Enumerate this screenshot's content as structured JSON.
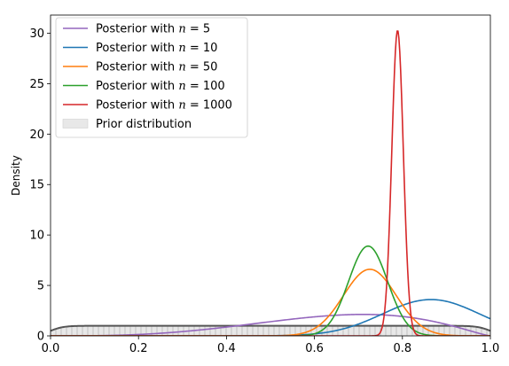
{
  "chart_data": {
    "type": "line",
    "title": "",
    "xlabel": "",
    "ylabel": "Density",
    "xlim": [
      0,
      1
    ],
    "ylim": [
      0,
      31.8
    ],
    "x_ticks": [
      0.0,
      0.2,
      0.4,
      0.6,
      0.8,
      1.0
    ],
    "x_tick_labels": [
      "0.0",
      "0.2",
      "0.4",
      "0.6",
      "0.8",
      "1.0"
    ],
    "y_ticks": [
      0,
      5,
      10,
      15,
      20,
      25,
      30
    ],
    "y_tick_labels": [
      "0",
      "5",
      "10",
      "15",
      "20",
      "25",
      "30"
    ],
    "grid": false,
    "legend_position": "top-left",
    "prior": {
      "name": "Prior distribution",
      "legend_prefix": "Prior distribution",
      "color": "#555555",
      "fill_color": "#e8e8e8",
      "hatch": "vertical",
      "shape": {
        "type": "smooth-box",
        "low": 0.0,
        "high": 1.0,
        "height": 1.0,
        "edge_width": 0.015
      },
      "values": [
        {
          "x": 0.0,
          "y": 0.5
        },
        {
          "x": 0.03,
          "y": 0.85
        },
        {
          "x": 0.05,
          "y": 0.98
        },
        {
          "x": 0.1,
          "y": 1.0
        },
        {
          "x": 0.5,
          "y": 1.0
        },
        {
          "x": 0.9,
          "y": 1.0
        },
        {
          "x": 0.95,
          "y": 0.98
        },
        {
          "x": 0.97,
          "y": 0.85
        },
        {
          "x": 1.0,
          "y": 0.5
        }
      ]
    },
    "series": [
      {
        "name": "Posterior with n = 5",
        "legend_prefix": "Posterior with ",
        "legend_math": "n",
        "legend_suffix": " = 5",
        "color": "#9467bd",
        "shape": {
          "type": "beta",
          "a": 4.2,
          "b": 2.3
        },
        "values": [
          {
            "x": 0.3,
            "y": 0.2
          },
          {
            "x": 0.4,
            "y": 0.5
          },
          {
            "x": 0.5,
            "y": 1.1
          },
          {
            "x": 0.6,
            "y": 1.8
          },
          {
            "x": 0.7,
            "y": 2.2
          },
          {
            "x": 0.8,
            "y": 2.0
          },
          {
            "x": 0.9,
            "y": 1.4
          },
          {
            "x": 1.0,
            "y": 0.7
          }
        ]
      },
      {
        "name": "Posterior with n = 10",
        "legend_prefix": "Posterior with ",
        "legend_math": "n",
        "legend_suffix": " = 10",
        "color": "#1f77b4",
        "shape": {
          "type": "gaussian",
          "mu": 0.865,
          "sigma": 0.11,
          "peak": 3.6
        },
        "values": [
          {
            "x": 0.6,
            "y": 0.3
          },
          {
            "x": 0.7,
            "y": 1.2
          },
          {
            "x": 0.8,
            "y": 3.0
          },
          {
            "x": 0.865,
            "y": 3.6
          },
          {
            "x": 0.9,
            "y": 3.4
          },
          {
            "x": 1.0,
            "y": 1.9
          }
        ]
      },
      {
        "name": "Posterior with n = 50",
        "legend_prefix": "Posterior with ",
        "legend_math": "n",
        "legend_suffix": " = 50",
        "color": "#ff7f0e",
        "shape": {
          "type": "gaussian",
          "mu": 0.726,
          "sigma": 0.06,
          "peak": 6.6
        },
        "values": [
          {
            "x": 0.6,
            "y": 0.8
          },
          {
            "x": 0.65,
            "y": 2.8
          },
          {
            "x": 0.7,
            "y": 6.0
          },
          {
            "x": 0.726,
            "y": 6.6
          },
          {
            "x": 0.75,
            "y": 6.1
          },
          {
            "x": 0.8,
            "y": 2.9
          },
          {
            "x": 0.85,
            "y": 0.8
          }
        ]
      },
      {
        "name": "Posterior with n = 100",
        "legend_prefix": "Posterior with ",
        "legend_math": "n",
        "legend_suffix": " = 100",
        "color": "#2ca02c",
        "shape": {
          "type": "gaussian",
          "mu": 0.722,
          "sigma": 0.0445,
          "peak": 8.9
        },
        "values": [
          {
            "x": 0.62,
            "y": 0.7
          },
          {
            "x": 0.67,
            "y": 4.5
          },
          {
            "x": 0.7,
            "y": 7.9
          },
          {
            "x": 0.722,
            "y": 8.9
          },
          {
            "x": 0.75,
            "y": 7.6
          },
          {
            "x": 0.8,
            "y": 1.9
          },
          {
            "x": 0.84,
            "y": 0.3
          }
        ]
      },
      {
        "name": "Posterior with n = 1000",
        "legend_prefix": "Posterior with ",
        "legend_math": "n",
        "legend_suffix": " = 1000",
        "color": "#d62728",
        "shape": {
          "type": "gaussian",
          "mu": 0.789,
          "sigma": 0.0131,
          "peak": 30.3
        },
        "values": [
          {
            "x": 0.75,
            "y": 0.3
          },
          {
            "x": 0.77,
            "y": 10.2
          },
          {
            "x": 0.78,
            "y": 23.5
          },
          {
            "x": 0.789,
            "y": 30.3
          },
          {
            "x": 0.8,
            "y": 21.4
          },
          {
            "x": 0.81,
            "y": 8.0
          },
          {
            "x": 0.83,
            "y": 0.2
          }
        ]
      }
    ]
  }
}
